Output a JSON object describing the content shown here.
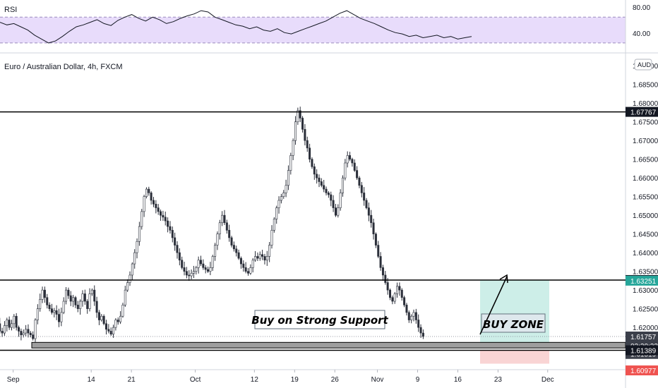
{
  "symbol_title": "Euro / Australian Dollar, 4h, FXCM",
  "currency_badge": "AUD",
  "rsi": {
    "label": "RSI",
    "levels": [
      {
        "label": "80.00",
        "value": 80
      },
      {
        "label": "40.00",
        "value": 40
      }
    ],
    "band": [
      30,
      70
    ],
    "series": [
      62,
      58,
      60,
      55,
      50,
      42,
      36,
      30,
      33,
      40,
      48,
      55,
      58,
      62,
      66,
      60,
      57,
      65,
      70,
      74,
      68,
      64,
      70,
      66,
      60,
      63,
      68,
      72,
      75,
      80,
      78,
      70,
      66,
      62,
      58,
      56,
      52,
      55,
      50,
      48,
      52,
      46,
      44,
      48,
      52,
      56,
      60,
      64,
      70,
      76,
      80,
      74,
      68,
      64,
      60,
      55,
      50,
      46,
      44,
      40,
      42,
      38,
      40,
      42,
      38,
      40,
      36,
      38,
      40
    ]
  },
  "annotations": {
    "buy_on_support": "Buy on Strong Support",
    "buy_zone": "BUY ZONE"
  },
  "price_tags": [
    {
      "label": "1.67767",
      "value": 1.67767,
      "style": "black"
    },
    {
      "label": "1.63268",
      "value": 1.63268,
      "style": "black"
    },
    {
      "label": "1.63251",
      "value": 1.63251,
      "style": "green"
    },
    {
      "label": "1.61757",
      "value": 1.61757,
      "style": "gray"
    },
    {
      "label": "02:20:23",
      "value": 1.6151,
      "style": "gray"
    },
    {
      "label": "1.61519",
      "value": 1.6129,
      "style": "gray"
    },
    {
      "label": "1.61389",
      "value": 1.61389,
      "style": "black"
    },
    {
      "label": "1.60977",
      "value": 1.6085,
      "style": "red"
    }
  ],
  "colors": {
    "candle": "#2a2e39",
    "level_line": "#000000",
    "rsi_band": "#e8dcfb",
    "rsi_line": "#131722",
    "zone_fill": "#9e9e9e",
    "target_fill": "#cdeee8",
    "stop_fill": "#f9d4d4",
    "green_tag": "#26a69a",
    "red_tag": "#ef5350"
  },
  "chart_data": {
    "type": "candlestick",
    "title": "Euro / Australian Dollar, 4h, FXCM",
    "xlabel": "",
    "ylabel": "",
    "ylim": [
      1.6087,
      1.6925
    ],
    "y_ticks": [
      1.62,
      1.625,
      1.63,
      1.635,
      1.64,
      1.645,
      1.65,
      1.655,
      1.66,
      1.665,
      1.67,
      1.675,
      1.68,
      1.685,
      1.69
    ],
    "y_tick_labels": [
      "1.62000",
      "1.62500",
      "1.63000",
      "1.63500",
      "1.64000",
      "1.64500",
      "1.65000",
      "1.65500",
      "1.66000",
      "1.66500",
      "1.67000",
      "1.67500",
      "1.68000",
      "1.68500",
      "1.69000"
    ],
    "x_ticks": [
      {
        "label": "Sep",
        "bar": 19
      },
      {
        "label": "14",
        "bar": 52
      },
      {
        "label": "21",
        "bar": 69
      },
      {
        "label": "Oct",
        "bar": 96
      },
      {
        "label": "12",
        "bar": 121
      },
      {
        "label": "19",
        "bar": 138
      },
      {
        "label": "26",
        "bar": 155
      },
      {
        "label": "Nov",
        "bar": 173
      },
      {
        "label": "9",
        "bar": 190
      },
      {
        "label": "16",
        "bar": 207
      },
      {
        "label": "23",
        "bar": 224
      },
      {
        "label": "Dec",
        "bar": 245
      }
    ],
    "x_bar_range": [
      0,
      262
    ],
    "closes": [
      1.648,
      1.6472,
      1.6488,
      1.6465,
      1.6502,
      1.6455,
      1.641,
      1.637,
      1.633,
      1.63,
      1.627,
      1.624,
      1.621,
      1.619,
      1.6185,
      1.6205,
      1.622,
      1.62,
      1.621,
      1.623,
      1.62,
      1.619,
      1.618,
      1.6185,
      1.6195,
      1.6185,
      1.618,
      1.617,
      1.622,
      1.625,
      1.6275,
      1.63,
      1.628,
      1.626,
      1.625,
      1.624,
      1.6245,
      1.6235,
      1.6215,
      1.624,
      1.627,
      1.63,
      1.6285,
      1.627,
      1.628,
      1.626,
      1.625,
      1.627,
      1.629,
      1.627,
      1.625,
      1.629,
      1.63,
      1.627,
      1.624,
      1.622,
      1.623,
      1.621,
      1.6195,
      1.619,
      1.6182,
      1.62,
      1.622,
      1.6215,
      1.623,
      1.626,
      1.63,
      1.632,
      1.634,
      1.637,
      1.64,
      1.643,
      1.647,
      1.651,
      1.655,
      1.657,
      1.656,
      1.654,
      1.653,
      1.652,
      1.651,
      1.65,
      1.6495,
      1.6485,
      1.647,
      1.646,
      1.644,
      1.642,
      1.64,
      1.638,
      1.636,
      1.635,
      1.634,
      1.6338,
      1.6345,
      1.635,
      1.636,
      1.638,
      1.637,
      1.636,
      1.6355,
      1.635,
      1.636,
      1.639,
      1.642,
      1.645,
      1.648,
      1.65,
      1.648,
      1.646,
      1.644,
      1.642,
      1.641,
      1.64,
      1.6385,
      1.637,
      1.636,
      1.635,
      1.6345,
      1.636,
      1.638,
      1.639,
      1.6385,
      1.6395,
      1.639,
      1.638,
      1.639,
      1.642,
      1.646,
      1.649,
      1.652,
      1.654,
      1.655,
      1.656,
      1.658,
      1.662,
      1.666,
      1.67,
      1.675,
      1.678,
      1.676,
      1.673,
      1.67,
      1.668,
      1.665,
      1.663,
      1.661,
      1.66,
      1.659,
      1.658,
      1.657,
      1.656,
      1.6555,
      1.654,
      1.652,
      1.65,
      1.652,
      1.656,
      1.66,
      1.664,
      1.666,
      1.665,
      1.664,
      1.662,
      1.66,
      1.658,
      1.656,
      1.654,
      1.652,
      1.65,
      1.648,
      1.645,
      1.642,
      1.639,
      1.636,
      1.634,
      1.632,
      1.63,
      1.628,
      1.627,
      1.629,
      1.631,
      1.63,
      1.628,
      1.626,
      1.624,
      1.622,
      1.623,
      1.624,
      1.622,
      1.62,
      1.6185,
      1.6176
    ]
  }
}
